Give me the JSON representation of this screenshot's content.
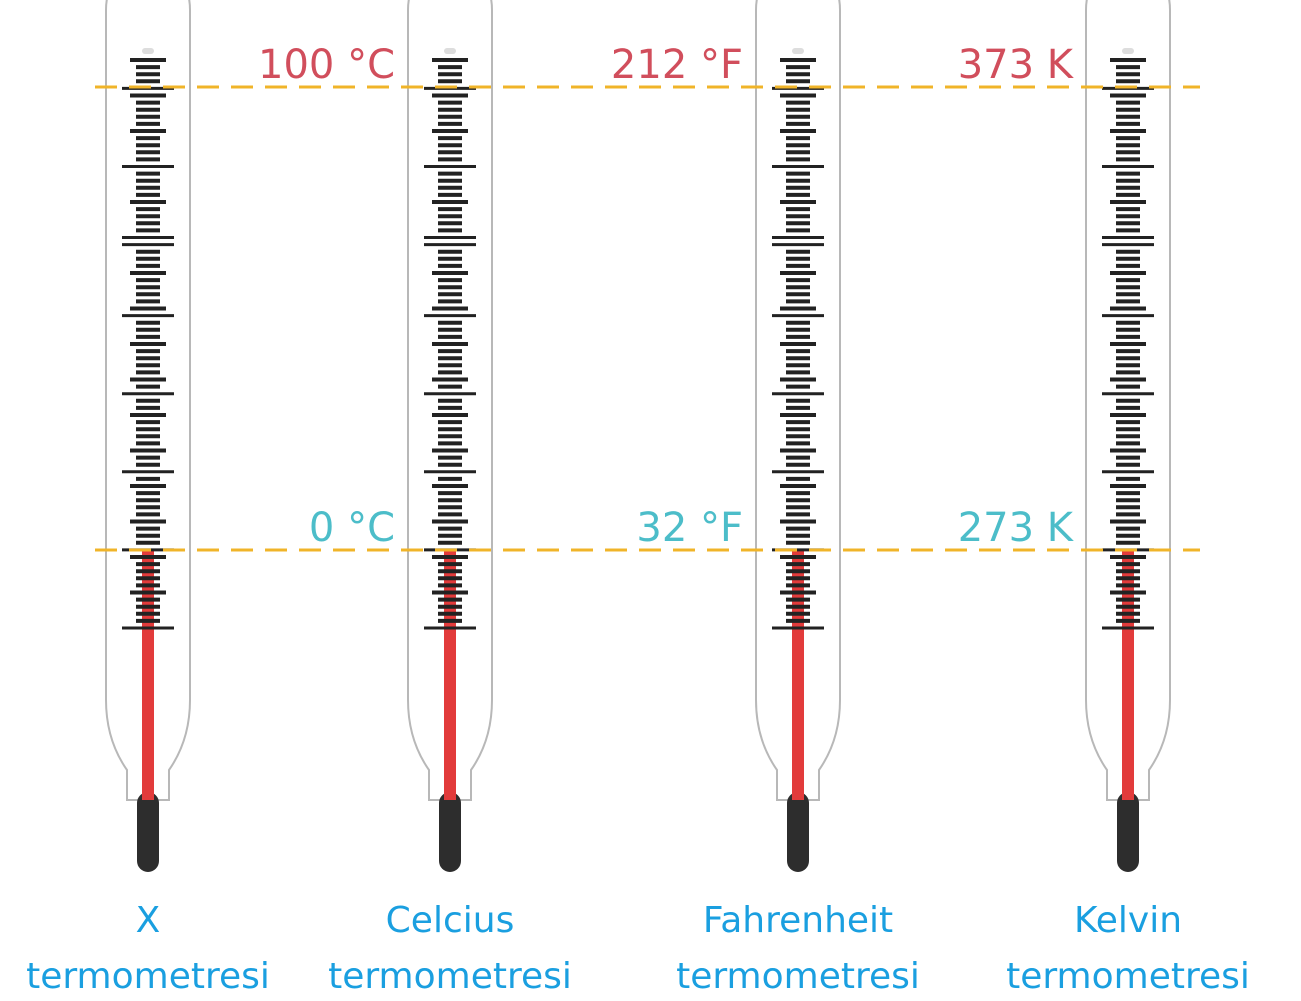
{
  "thermometers": [
    {
      "name": "X",
      "label": "termometresi"
    },
    {
      "name": "Celcius",
      "label": "termometresi",
      "top": "100 °C",
      "bottom": "0 °C"
    },
    {
      "name": "Fahrenheit",
      "label": "termometresi",
      "top": "212 °F",
      "bottom": "32 °F"
    },
    {
      "name": "Kelvin",
      "label": "termometresi",
      "top": "373 K",
      "bottom": "273 K"
    }
  ]
}
